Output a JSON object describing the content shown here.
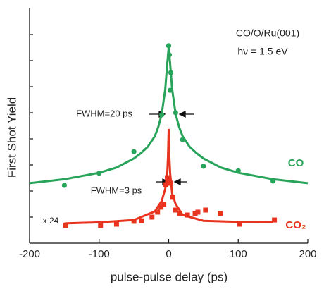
{
  "chart_data": {
    "type": "scatter",
    "x_label": "pulse-pulse delay (ps)",
    "y_label": "First Shot Yield",
    "annotations": [
      "CO/O/Ru(001)",
      "hν = 1.5 eV",
      "FWHM=20 ps",
      "FWHM=3 ps",
      "x 24"
    ],
    "xlim": [
      -200,
      200
    ],
    "xticks": [
      -200,
      -100,
      0,
      100,
      200
    ],
    "ylim": [
      0,
      9
    ],
    "yticks": [
      1,
      2,
      3,
      4,
      5,
      6,
      7,
      8
    ],
    "series": [
      {
        "name": "CO",
        "color": "#27a35a",
        "x": [
          -150,
          -100,
          -50,
          -10,
          0,
          1,
          3,
          2,
          10,
          20,
          50,
          100,
          150
        ],
        "values": [
          2.22,
          2.68,
          3.51,
          4.92,
          7.57,
          7.22,
          6.54,
          5.86,
          5.0,
          3.97,
          2.95,
          2.78,
          2.38
        ]
      },
      {
        "name": "CO₂",
        "color": "#e8331f",
        "x": [
          -148,
          -98,
          -75,
          -50,
          -39,
          -24,
          -16,
          -11,
          -7,
          -4,
          -2,
          1,
          3,
          6,
          10,
          16,
          27,
          38,
          42,
          53,
          74,
          102,
          152
        ],
        "values": [
          0.68,
          0.68,
          0.73,
          0.84,
          0.86,
          1.0,
          1.19,
          1.38,
          1.49,
          2.24,
          2.51,
          2.35,
          2.3,
          1.76,
          1.27,
          1.14,
          1.08,
          1.14,
          1.19,
          1.27,
          1.14,
          0.73,
          0.89
        ]
      }
    ],
    "fits": [
      {
        "color": "#27a35a",
        "x": [
          -200,
          -150,
          -100,
          -75,
          -50,
          -40,
          -30,
          -20,
          -15,
          -10,
          -5,
          -2,
          0,
          2,
          5,
          10,
          15,
          20,
          30,
          40,
          50,
          75,
          100,
          150,
          200
        ],
        "values": [
          2.3,
          2.45,
          2.7,
          2.9,
          3.25,
          3.45,
          3.7,
          4.1,
          4.45,
          4.95,
          5.9,
          6.9,
          7.5,
          6.9,
          5.9,
          4.95,
          4.45,
          4.1,
          3.7,
          3.45,
          3.25,
          2.9,
          2.7,
          2.45,
          2.3
        ]
      },
      {
        "color": "#e8331f",
        "x": [
          -150,
          -100,
          -50,
          -20,
          -10,
          -5,
          -2,
          -1,
          0,
          1,
          2,
          5,
          10,
          20,
          50,
          100,
          150
        ],
        "values": [
          0.76,
          0.8,
          0.89,
          1.22,
          1.62,
          2.08,
          2.7,
          3.3,
          4.38,
          3.3,
          2.7,
          1.9,
          1.5,
          1.08,
          0.86,
          0.82,
          0.81
        ]
      }
    ]
  }
}
